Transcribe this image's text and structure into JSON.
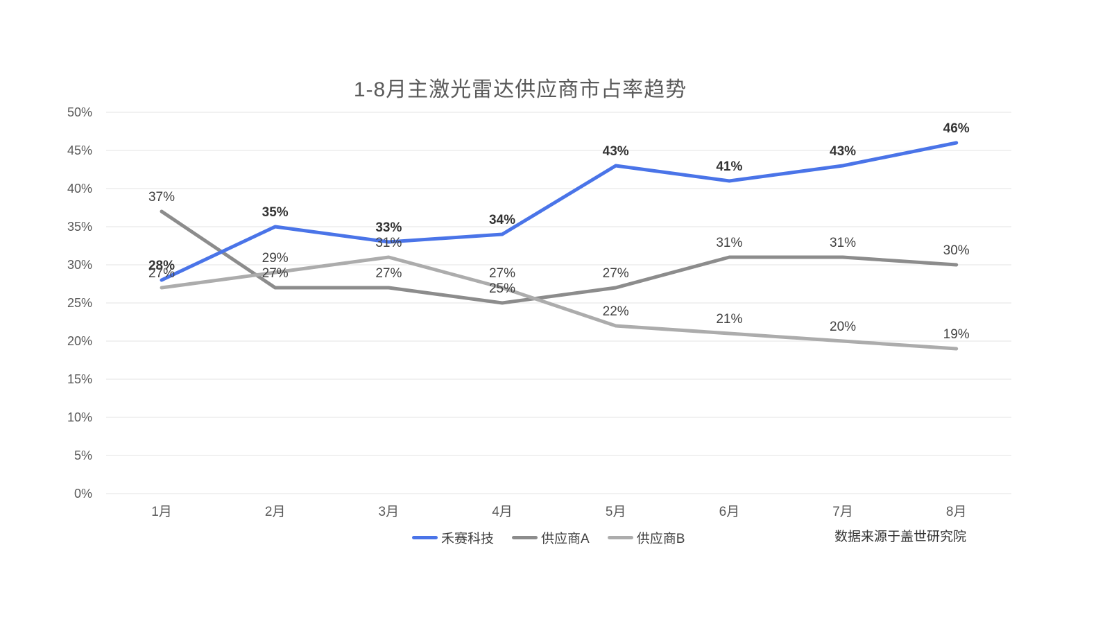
{
  "chart": {
    "title": "1-8月主激光雷达供应商市占率趋势",
    "source_note": "数据来源于盖世研究院"
  },
  "chart_data": {
    "type": "line",
    "title": "1-8月主激光雷达供应商市占率趋势",
    "categories": [
      "1月",
      "2月",
      "3月",
      "4月",
      "5月",
      "6月",
      "7月",
      "8月"
    ],
    "series": [
      {
        "name": "禾赛科技",
        "values": [
          28,
          35,
          33,
          34,
          43,
          41,
          43,
          46
        ],
        "color": "#4A74E8",
        "bold_labels": true
      },
      {
        "name": "供应商A",
        "values": [
          37,
          27,
          27,
          25,
          27,
          31,
          31,
          30
        ],
        "color": "#8C8C8C",
        "bold_labels": false
      },
      {
        "name": "供应商B",
        "values": [
          27,
          29,
          31,
          27,
          22,
          21,
          20,
          19
        ],
        "color": "#ACACAC",
        "bold_labels": false
      }
    ],
    "yaxis": {
      "min": 0,
      "max": 50,
      "step": 5,
      "suffix": "%"
    },
    "data_label_suffix": "%",
    "grid": true,
    "legend_position": "bottom",
    "source": "数据来源于盖世研究院"
  },
  "colors": {
    "background": "#FFFFFF",
    "grid": "#E3E3E3",
    "axis_text": "#595959",
    "data_label": "#404040",
    "data_label_bold": "#333333",
    "title_text": "#5A5A5A",
    "source_text": "#333333"
  }
}
